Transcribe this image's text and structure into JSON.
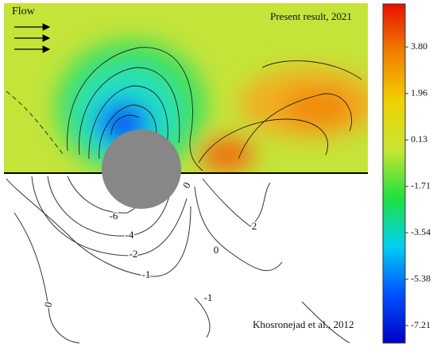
{
  "chart_data": {
    "type": "contour",
    "top_label": "Present result, 2021",
    "bottom_label": "Khosronejad et al., 2012",
    "flow_label": "Flow",
    "colormap": [
      "#0000c8",
      "#0050ff",
      "#00d0f0",
      "#20e040",
      "#c8e632",
      "#f0d000",
      "#f08000",
      "#e81000"
    ],
    "clim": [
      -7.9,
      5.5
    ],
    "cticks": [
      {
        "value": 3.8,
        "label": "3.80"
      },
      1.96,
      0.13,
      -1.71,
      -3.54,
      -5.38,
      -7.21
    ],
    "contour_labels": [
      0,
      -6,
      -4,
      -2,
      -1,
      0,
      2,
      -1,
      0
    ]
  }
}
